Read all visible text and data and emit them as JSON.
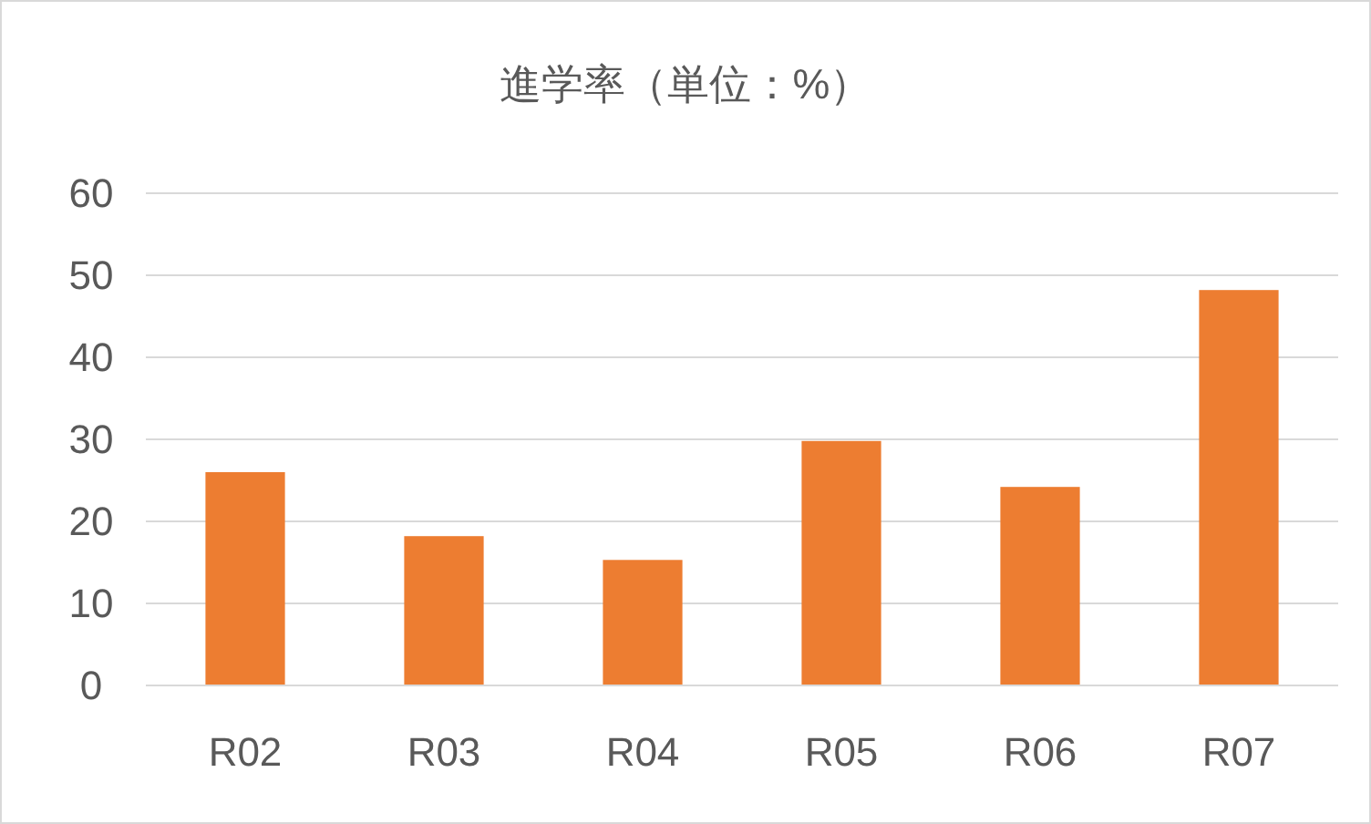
{
  "chart_data": {
    "type": "bar",
    "title": "進学率（単位：%）",
    "categories": [
      "R02",
      "R03",
      "R04",
      "R05",
      "R06",
      "R07"
    ],
    "values": [
      26.0,
      18.2,
      15.3,
      29.8,
      24.2,
      48.2
    ],
    "color": "#ed7d31",
    "ylim": [
      0,
      60
    ],
    "yticks": [
      0,
      10,
      20,
      30,
      40,
      50,
      60
    ],
    "grid": "y"
  }
}
